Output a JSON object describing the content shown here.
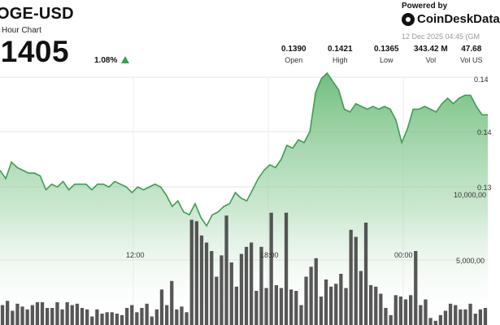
{
  "header": {
    "title": "OGE-USD",
    "subtitle": "Hour Chart",
    "price": ".1405",
    "change": "1.08%",
    "powered_by": "Powered by",
    "brand": "CoinDeskData",
    "timestamp": "12 Dec 2025 04:45 (GM"
  },
  "stats": [
    {
      "value": "0.1390",
      "label": "Open"
    },
    {
      "value": "0.1421",
      "label": "High"
    },
    {
      "value": "0.1365",
      "label": "Low"
    },
    {
      "value": "343.42 M",
      "label": "Vol"
    },
    {
      "value": "47.68",
      "label": "Vol US"
    }
  ],
  "colors": {
    "line": "#3f9c52",
    "fill_top": "#62b771",
    "volume": "#3a3a3a",
    "up": "#3f9c52"
  },
  "chart_data": [
    {
      "type": "area",
      "series": [
        {
          "values": [
            0.1386,
            0.1383,
            0.1389,
            0.1387,
            0.1386,
            0.1385,
            0.1385,
            0.1384,
            0.1379,
            0.1381,
            0.138,
            0.1382,
            0.1379,
            0.1381,
            0.1381,
            0.1381,
            0.1379,
            0.1381,
            0.1381,
            0.138,
            0.1382,
            0.1381,
            0.138,
            0.1378,
            0.138,
            0.1379,
            0.138,
            0.1381,
            0.138,
            0.1377,
            0.1373,
            0.1375,
            0.1371,
            0.137,
            0.1374,
            0.1369,
            0.1366,
            0.137,
            0.1371,
            0.1373,
            0.1374,
            0.1378,
            0.1376,
            0.1375,
            0.1379,
            0.1383,
            0.1386,
            0.1388,
            0.1387,
            0.139,
            0.1395,
            0.1394,
            0.1397,
            0.1396,
            0.14,
            0.1414,
            0.1419,
            0.1421,
            0.1418,
            0.1415,
            0.1408,
            0.1407,
            0.141,
            0.1409,
            0.1408,
            0.1409,
            0.1408,
            0.1409,
            0.1408,
            0.1404,
            0.1396,
            0.1401,
            0.1408,
            0.1408,
            0.1409,
            0.1408,
            0.1407,
            0.141,
            0.1412,
            0.141,
            0.1412,
            0.1413,
            0.1413,
            0.1409,
            0.1406,
            0.1406
          ]
        }
      ],
      "ytick_labels": [
        "0.14",
        "0.14",
        "0.13"
      ],
      "xtick_labels": [
        "12:00",
        "18:00",
        "00:00"
      ],
      "grid": true
    },
    {
      "type": "bar",
      "series": [
        {
          "values": [
            1.4,
            1.7,
            1.0,
            1.5,
            1.3,
            1.1,
            1.4,
            1.6,
            1.6,
            1.2,
            1.2,
            1.6,
            1.1,
            1.6,
            1.4,
            1.5,
            1.2,
            1.1,
            0.6,
            1.1,
            0.8,
            0.9,
            0.9,
            0.8,
            0.7,
            1.2,
            1.4,
            0.9,
            1.2,
            1.5,
            0.6,
            1.1,
            2.5,
            1.4,
            3.1,
            1.1,
            1.3,
            0.9,
            7.4,
            7.3,
            6.3,
            5.8,
            5.2,
            3.4,
            4.9,
            7.7,
            4.4,
            2.7,
            5.0,
            5.5,
            5.8,
            2.4,
            5.5,
            2.6,
            7.9,
            2.8,
            2.6,
            7.9,
            2.5,
            2.4,
            1.4,
            3.4,
            4.1,
            4.7,
            2.0,
            3.2,
            2.7,
            2.9,
            3.6,
            2.6,
            6.7,
            6.2,
            3.8,
            7.2,
            2.8,
            2.7,
            2.2,
            1.2,
            0.7,
            2.1,
            2.0,
            1.8,
            2.1,
            5.2,
            1.4,
            1.8,
            0.5,
            0.3,
            0.7,
            1.0,
            1.5,
            1.4,
            1.1,
            1.1,
            1.5,
            0.8,
            1.1,
            1.2
          ]
        }
      ],
      "ytick_labels": [
        "10,000,00",
        "5,000,00"
      ]
    }
  ]
}
